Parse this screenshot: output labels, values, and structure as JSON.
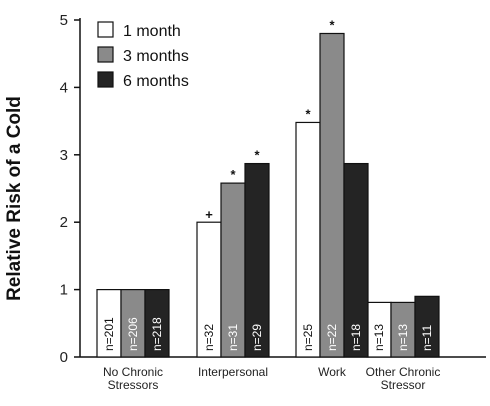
{
  "chart_data": {
    "type": "bar",
    "ylabel": "Relative Risk of a Cold",
    "ylim": [
      0,
      5
    ],
    "yticks": [
      "0",
      "1",
      "2",
      "3",
      "4",
      "5"
    ],
    "categories": [
      [
        "No Chronic",
        "Stressors"
      ],
      [
        "Interpersonal"
      ],
      [
        "Work"
      ],
      [
        "Other Chronic",
        "Stressor"
      ]
    ],
    "series": [
      {
        "name": "1 month",
        "color": "#ffffff",
        "textColor": "#111111",
        "values": [
          1.0,
          2.0,
          3.48,
          0.81
        ],
        "n": [
          "n=201",
          "n=32",
          "n=25",
          "n=13"
        ],
        "marks": [
          "",
          "+",
          "*",
          ""
        ]
      },
      {
        "name": "3 months",
        "color": "#8a8a8a",
        "textColor": "#ffffff",
        "values": [
          1.0,
          2.58,
          4.8,
          0.81
        ],
        "n": [
          "n=206",
          "n=31",
          "n=22",
          "n=13"
        ],
        "marks": [
          "",
          "*",
          "*",
          ""
        ]
      },
      {
        "name": "6 months",
        "color": "#242424",
        "textColor": "#ffffff",
        "values": [
          1.0,
          2.87,
          2.87,
          0.9
        ],
        "n": [
          "n=218",
          "n=29",
          "n=18",
          "n=11"
        ],
        "marks": [
          "",
          "*",
          "",
          ""
        ]
      }
    ],
    "legend_position": "top-left",
    "grid": false
  }
}
